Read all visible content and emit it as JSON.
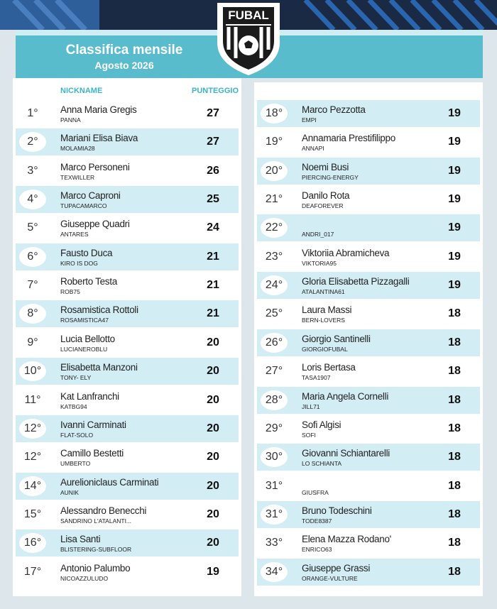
{
  "header": {
    "logo": "FUBAL",
    "title": "Classifica mensile",
    "subtitle": "Agosto 2026"
  },
  "table": {
    "columns": [
      "NICKNAME",
      "PUNTEGGIO"
    ],
    "rows": [
      {
        "rank": "1°",
        "name": "Anna Maria Gregis",
        "nickname": "PANNA",
        "score": 27
      },
      {
        "rank": "2°",
        "name": "Mariani Elisa Biava",
        "nickname": "MOLAMIA28",
        "score": 27
      },
      {
        "rank": "3°",
        "name": "Marco Personeni",
        "nickname": "TEXWILLER",
        "score": 26
      },
      {
        "rank": "4°",
        "name": "Marco Caproni",
        "nickname": "TUPACAMARCO",
        "score": 25
      },
      {
        "rank": "5°",
        "name": "Giuseppe Quadri",
        "nickname": "ANTARES",
        "score": 24
      },
      {
        "rank": "6°",
        "name": "Fausto Duca",
        "nickname": "KIRO IS DOG",
        "score": 21
      },
      {
        "rank": "7°",
        "name": "Roberto Testa",
        "nickname": "ROB75",
        "score": 21
      },
      {
        "rank": "8°",
        "name": "Rosamistica Rottoli",
        "nickname": "ROSAMISTICA47",
        "score": 21
      },
      {
        "rank": "9°",
        "name": "Lucia Bellotto",
        "nickname": "LUCIANEROBLU",
        "score": 20
      },
      {
        "rank": "10°",
        "name": "Elisabetta Manzoni",
        "nickname": "TONY- ELY",
        "score": 20
      },
      {
        "rank": "11°",
        "name": "Kat Lanfranchi",
        "nickname": "KATBG94",
        "score": 20
      },
      {
        "rank": "12°",
        "name": "Ivanni Carminati",
        "nickname": "FLAT-SOLO",
        "score": 20
      },
      {
        "rank": "12°",
        "name": "Camillo Bestetti",
        "nickname": "UMBERTO",
        "score": 20
      },
      {
        "rank": "14°",
        "name": "Aurelioniclaus Carminati",
        "nickname": "AUNIK",
        "score": 20
      },
      {
        "rank": "15°",
        "name": "Alessandro Benecchi",
        "nickname": "SANDRINO L'ATALANTI...",
        "score": 20
      },
      {
        "rank": "16°",
        "name": "Lisa Santi",
        "nickname": "BLISTERING-SUBFLOOR",
        "score": 20
      },
      {
        "rank": "17°",
        "name": "Antonio Palumbo",
        "nickname": "NICOAZZULUDO",
        "score": 19
      },
      {
        "rank": "18°",
        "name": "Marco Pezzotta",
        "nickname": "EMPI",
        "score": 19
      },
      {
        "rank": "19°",
        "name": "Annamaria Prestifilippo",
        "nickname": "ANNAPI",
        "score": 19
      },
      {
        "rank": "20°",
        "name": "Noemi Busi",
        "nickname": "PIERCING-ENERGY",
        "score": 19
      },
      {
        "rank": "21°",
        "name": "Danilo Rota",
        "nickname": "DEAFOREVER",
        "score": 19
      },
      {
        "rank": "22°",
        "nickname": "ANDRI_017",
        "score": 19
      },
      {
        "rank": "23°",
        "name": "Viktoriia Abramicheva",
        "nickname": "VIKTORIA95",
        "score": 19
      },
      {
        "rank": "24°",
        "name": "Gloria Elisabetta Pizzagalli",
        "nickname": "ATALANTINA61",
        "score": 19
      },
      {
        "rank": "25°",
        "name": "Laura Massi",
        "nickname": "BERN-LOVERS",
        "score": 18
      },
      {
        "rank": "26°",
        "name": "Giorgio Santinelli",
        "nickname": "GIORGIOFUBAL",
        "score": 18
      },
      {
        "rank": "27°",
        "name": "Loris Bertasa",
        "nickname": "TASA1907",
        "score": 18
      },
      {
        "rank": "28°",
        "name": "Maria Angela Cornelli",
        "nickname": "JILL71",
        "score": 18
      },
      {
        "rank": "29°",
        "name": "Sofi Algisi",
        "nickname": "SOFI",
        "score": 18
      },
      {
        "rank": "30°",
        "name": "Giovanni Schiantarelli",
        "nickname": "LO SCHIANTA",
        "score": 18
      },
      {
        "rank": "31°",
        "nickname": "GIUSFRA",
        "score": 18
      },
      {
        "rank": "31°",
        "name": "Bruno Todeschini",
        "nickname": "TODE8387",
        "score": 18
      },
      {
        "rank": "33°",
        "name": "Elena Mazza Rodano'",
        "nickname": "ENRICO63",
        "score": 18
      },
      {
        "rank": "34°",
        "name": "Giuseppe Grassi",
        "nickname": "ORANGE-VULTURE",
        "score": 18
      }
    ]
  }
}
